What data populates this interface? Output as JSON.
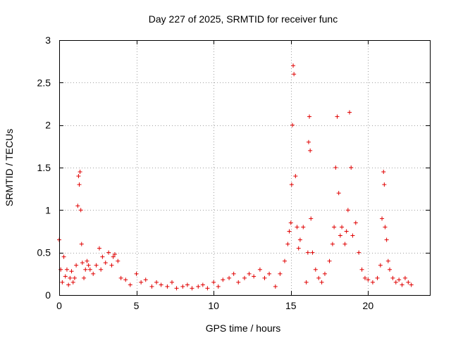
{
  "chart_data": {
    "type": "scatter",
    "title": "Day 227 of 2025, SRMTID for receiver func",
    "xlabel": "GPS time / hours",
    "ylabel": "SRMTID / TECUs",
    "xlim": [
      0,
      24
    ],
    "ylim": [
      0,
      3
    ],
    "xticks": [
      0,
      5,
      10,
      15,
      20
    ],
    "xtick_labels": [
      "0",
      "5",
      "10",
      "15",
      "20"
    ],
    "yticks": [
      0,
      0.5,
      1,
      1.5,
      2,
      2.5,
      3
    ],
    "ytick_labels": [
      "0",
      "0.5",
      "1",
      "1.5",
      "2",
      "2.5",
      "3"
    ],
    "grid": true,
    "marker": "+",
    "series": [
      {
        "name": "SRMTID",
        "color": "#e00000",
        "x": [
          0.0,
          0.1,
          0.2,
          0.3,
          0.4,
          0.5,
          0.6,
          0.7,
          0.8,
          0.9,
          1.0,
          1.1,
          1.2,
          1.25,
          1.3,
          1.35,
          1.4,
          1.45,
          1.5,
          1.6,
          1.7,
          1.8,
          1.9,
          2.0,
          2.2,
          2.4,
          2.6,
          2.7,
          2.8,
          3.0,
          3.2,
          3.4,
          3.5,
          3.6,
          3.8,
          4.0,
          4.3,
          4.6,
          5.0,
          5.3,
          5.6,
          6.0,
          6.3,
          6.6,
          7.0,
          7.3,
          7.6,
          8.0,
          8.3,
          8.6,
          9.0,
          9.3,
          9.6,
          10.0,
          10.3,
          10.6,
          11.0,
          11.3,
          11.6,
          12.0,
          12.3,
          12.6,
          13.0,
          13.3,
          13.6,
          14.0,
          14.3,
          14.6,
          14.8,
          14.9,
          15.0,
          15.05,
          15.1,
          15.15,
          15.2,
          15.3,
          15.4,
          15.5,
          15.6,
          15.8,
          16.0,
          16.1,
          16.15,
          16.2,
          16.25,
          16.3,
          16.4,
          16.6,
          16.8,
          17.0,
          17.2,
          17.5,
          17.7,
          17.8,
          17.9,
          18.0,
          18.1,
          18.2,
          18.3,
          18.5,
          18.6,
          18.7,
          18.8,
          18.9,
          19.0,
          19.2,
          19.4,
          19.6,
          19.8,
          20.0,
          20.3,
          20.6,
          20.8,
          20.9,
          21.0,
          21.05,
          21.1,
          21.2,
          21.3,
          21.4,
          21.6,
          21.8,
          22.0,
          22.2,
          22.4,
          22.6,
          22.8
        ],
        "y": [
          0.65,
          0.3,
          0.15,
          0.45,
          0.22,
          0.3,
          0.12,
          0.2,
          0.28,
          0.15,
          0.2,
          0.35,
          1.05,
          1.4,
          1.3,
          1.45,
          1.0,
          0.6,
          0.38,
          0.2,
          0.3,
          0.4,
          0.35,
          0.3,
          0.25,
          0.35,
          0.55,
          0.3,
          0.45,
          0.38,
          0.5,
          0.35,
          0.45,
          0.48,
          0.4,
          0.2,
          0.18,
          0.12,
          0.25,
          0.15,
          0.18,
          0.1,
          0.15,
          0.12,
          0.1,
          0.15,
          0.08,
          0.1,
          0.12,
          0.08,
          0.1,
          0.12,
          0.08,
          0.15,
          0.1,
          0.18,
          0.2,
          0.25,
          0.15,
          0.2,
          0.25,
          0.22,
          0.3,
          0.2,
          0.25,
          0.1,
          0.25,
          0.4,
          0.6,
          0.75,
          0.85,
          1.3,
          2.0,
          2.7,
          2.6,
          1.4,
          0.8,
          0.55,
          0.65,
          0.8,
          0.15,
          0.5,
          1.8,
          2.1,
          1.7,
          0.9,
          0.5,
          0.3,
          0.2,
          0.15,
          0.25,
          0.4,
          0.6,
          0.8,
          1.5,
          2.1,
          1.2,
          0.7,
          0.8,
          0.6,
          0.75,
          1.0,
          2.15,
          1.5,
          0.7,
          0.85,
          0.5,
          0.3,
          0.2,
          0.18,
          0.15,
          0.2,
          0.35,
          0.9,
          1.45,
          1.3,
          0.8,
          0.65,
          0.4,
          0.3,
          0.2,
          0.15,
          0.18,
          0.12,
          0.2,
          0.15,
          0.12
        ]
      }
    ]
  }
}
